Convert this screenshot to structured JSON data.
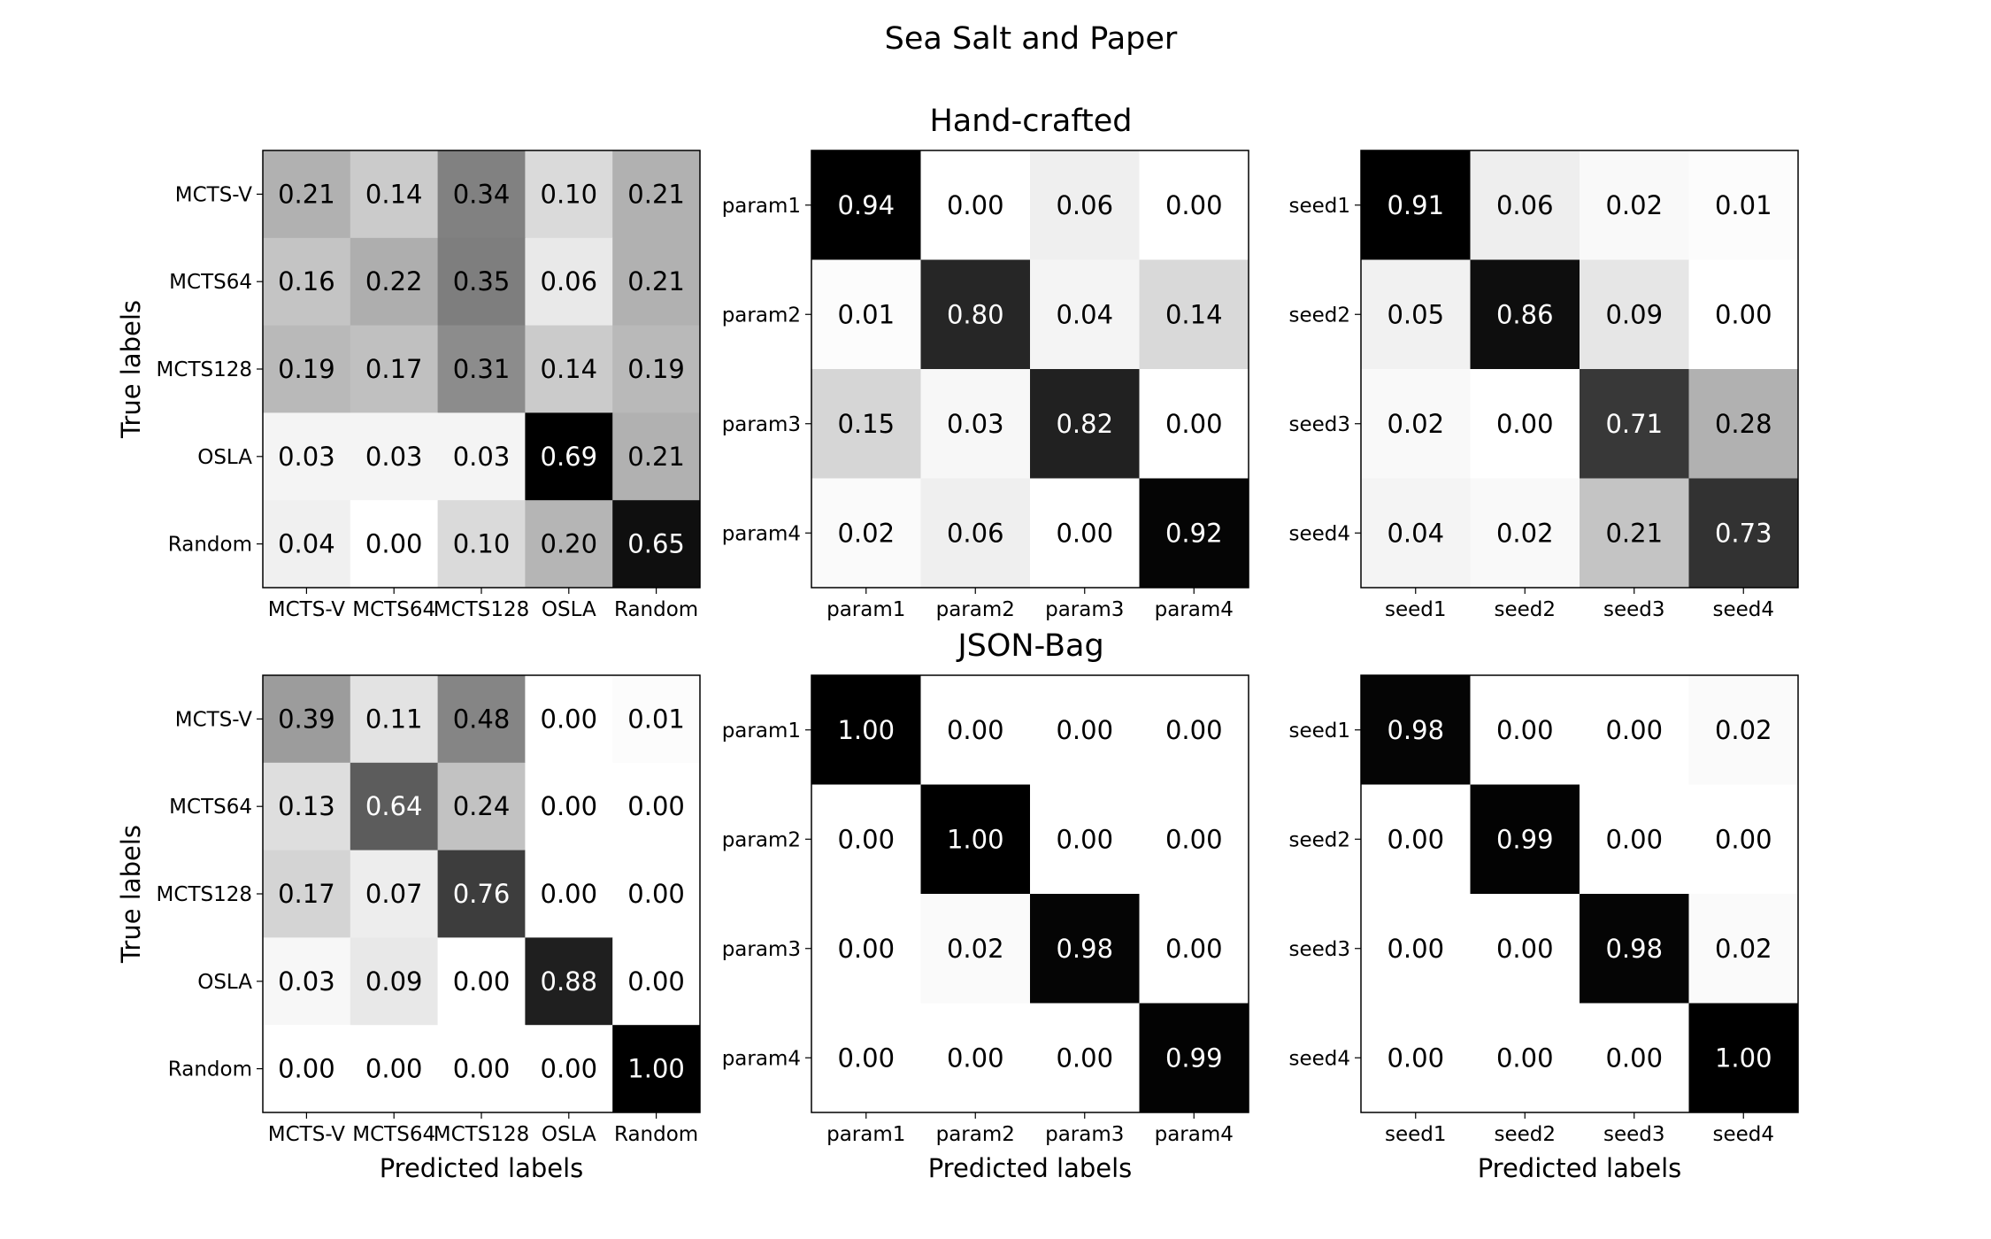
{
  "figure": {
    "title": "Sea Salt and Paper",
    "row_titles": [
      "Hand-crafted",
      "JSON-Bag"
    ]
  },
  "chart_data": [
    {
      "type": "heatmap",
      "row_title": "Hand-crafted",
      "xlabel": "",
      "ylabel": "True labels",
      "x_categories": [
        "MCTS-V",
        "MCTS64",
        "MCTS128",
        "OSLA",
        "Random"
      ],
      "y_categories": [
        "MCTS-V",
        "MCTS64",
        "MCTS128",
        "OSLA",
        "Random"
      ],
      "values": [
        [
          0.21,
          0.14,
          0.34,
          0.1,
          0.21
        ],
        [
          0.16,
          0.22,
          0.35,
          0.06,
          0.21
        ],
        [
          0.19,
          0.17,
          0.31,
          0.14,
          0.19
        ],
        [
          0.03,
          0.03,
          0.03,
          0.69,
          0.21
        ],
        [
          0.04,
          0.0,
          0.1,
          0.2,
          0.65
        ]
      ],
      "colormap": "Greys"
    },
    {
      "type": "heatmap",
      "row_title": "Hand-crafted",
      "xlabel": "",
      "ylabel": "",
      "x_categories": [
        "param1",
        "param2",
        "param3",
        "param4"
      ],
      "y_categories": [
        "param1",
        "param2",
        "param3",
        "param4"
      ],
      "values": [
        [
          0.94,
          0.0,
          0.06,
          0.0
        ],
        [
          0.01,
          0.8,
          0.04,
          0.14
        ],
        [
          0.15,
          0.03,
          0.82,
          0.0
        ],
        [
          0.02,
          0.06,
          0.0,
          0.92
        ]
      ],
      "colormap": "Greys"
    },
    {
      "type": "heatmap",
      "row_title": "Hand-crafted",
      "xlabel": "",
      "ylabel": "",
      "x_categories": [
        "seed1",
        "seed2",
        "seed3",
        "seed4"
      ],
      "y_categories": [
        "seed1",
        "seed2",
        "seed3",
        "seed4"
      ],
      "values": [
        [
          0.91,
          0.06,
          0.02,
          0.01
        ],
        [
          0.05,
          0.86,
          0.09,
          0.0
        ],
        [
          0.02,
          0.0,
          0.71,
          0.28
        ],
        [
          0.04,
          0.02,
          0.21,
          0.73
        ]
      ],
      "colormap": "Greys"
    },
    {
      "type": "heatmap",
      "row_title": "JSON-Bag",
      "xlabel": "Predicted labels",
      "ylabel": "True labels",
      "x_categories": [
        "MCTS-V",
        "MCTS64",
        "MCTS128",
        "OSLA",
        "Random"
      ],
      "y_categories": [
        "MCTS-V",
        "MCTS64",
        "MCTS128",
        "OSLA",
        "Random"
      ],
      "values": [
        [
          0.39,
          0.11,
          0.48,
          0.0,
          0.01
        ],
        [
          0.13,
          0.64,
          0.24,
          0.0,
          0.0
        ],
        [
          0.17,
          0.07,
          0.76,
          0.0,
          0.0
        ],
        [
          0.03,
          0.09,
          0.0,
          0.88,
          0.0
        ],
        [
          0.0,
          0.0,
          0.0,
          0.0,
          1.0
        ]
      ],
      "colormap": "Greys"
    },
    {
      "type": "heatmap",
      "row_title": "JSON-Bag",
      "xlabel": "Predicted labels",
      "ylabel": "",
      "x_categories": [
        "param1",
        "param2",
        "param3",
        "param4"
      ],
      "y_categories": [
        "param1",
        "param2",
        "param3",
        "param4"
      ],
      "values": [
        [
          1.0,
          0.0,
          0.0,
          0.0
        ],
        [
          0.0,
          1.0,
          0.0,
          0.0
        ],
        [
          0.0,
          0.02,
          0.98,
          0.0
        ],
        [
          0.0,
          0.0,
          0.0,
          0.99
        ]
      ],
      "colormap": "Greys"
    },
    {
      "type": "heatmap",
      "row_title": "JSON-Bag",
      "xlabel": "Predicted labels",
      "ylabel": "",
      "x_categories": [
        "seed1",
        "seed2",
        "seed3",
        "seed4"
      ],
      "y_categories": [
        "seed1",
        "seed2",
        "seed3",
        "seed4"
      ],
      "values": [
        [
          0.98,
          0.0,
          0.0,
          0.02
        ],
        [
          0.0,
          0.99,
          0.0,
          0.0
        ],
        [
          0.0,
          0.0,
          0.98,
          0.02
        ],
        [
          0.0,
          0.0,
          0.0,
          1.0
        ]
      ],
      "colormap": "Greys"
    }
  ]
}
